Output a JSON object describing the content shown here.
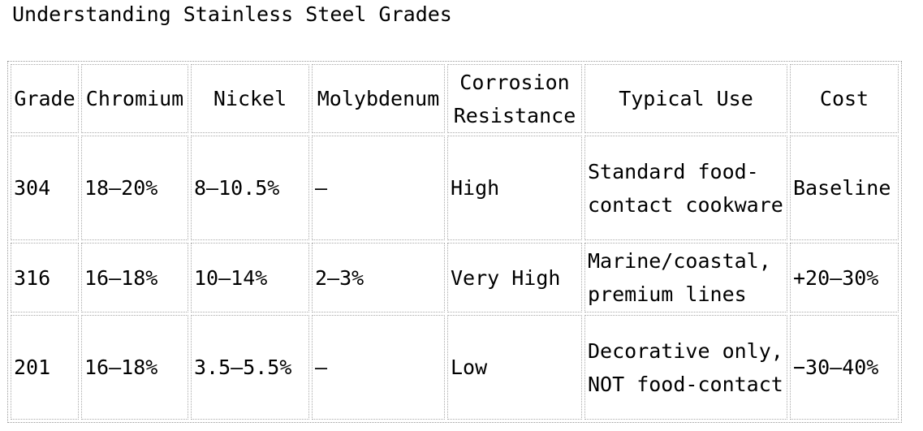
{
  "header": {
    "title": "Understanding Stainless Steel Grades"
  },
  "table": {
    "columns": [
      "Grade",
      "Chromium",
      "Nickel",
      "Molybdenum",
      "Corrosion Resistance",
      "Typical Use",
      "Cost"
    ],
    "rows": [
      [
        "304",
        "18–20%",
        "8–10.5%",
        "—",
        "High",
        "Standard food-contact cookware",
        "Baseline"
      ],
      [
        "316",
        "16–18%",
        "10–14%",
        "2–3%",
        "Very High",
        "Marine/coastal, premium lines",
        "+20–30%"
      ],
      [
        "201",
        "16–18%",
        "3.5–5.5%",
        "—",
        "Low",
        "Decorative only, NOT food-contact",
        "−30–40%"
      ]
    ]
  }
}
